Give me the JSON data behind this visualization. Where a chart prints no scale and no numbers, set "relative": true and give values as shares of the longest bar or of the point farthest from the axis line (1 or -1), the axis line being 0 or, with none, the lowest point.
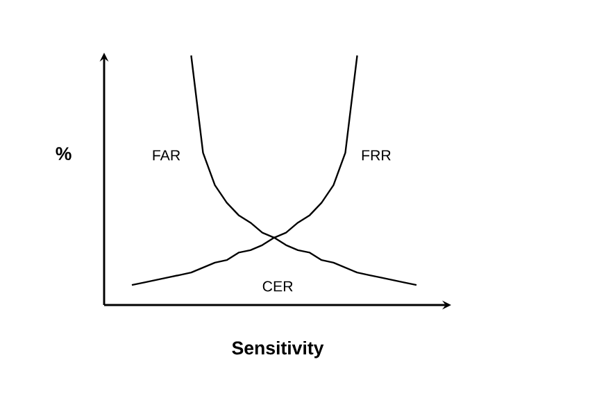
{
  "chart_data": {
    "type": "line",
    "relative": true,
    "xlabel": "Sensitivity",
    "ylabel": "%",
    "categories": [
      null,
      null,
      null,
      null,
      null,
      null,
      null,
      null,
      null,
      null,
      null,
      null,
      null,
      null,
      null,
      null,
      null,
      null,
      null,
      null,
      null,
      null,
      null,
      null,
      null
    ],
    "series": [
      {
        "name": "FAR",
        "color": "#000000",
        "values": [
          null,
          null,
          null,
          null,
          null,
          1,
          0.61,
          0.48,
          0.41,
          0.36,
          0.33,
          0.29,
          0.27,
          0.24,
          0.22,
          0.21,
          0.18,
          0.17,
          0.15,
          0.13,
          0.12,
          0.11,
          0.1,
          0.09,
          0.08
        ]
      },
      {
        "name": "FRR",
        "color": "#000000",
        "values": [
          0.08,
          0.09,
          0.1,
          0.11,
          0.12,
          0.13,
          0.15,
          0.17,
          0.18,
          0.21,
          0.22,
          0.24,
          0.27,
          0.29,
          0.33,
          0.36,
          0.41,
          0.48,
          0.61,
          1,
          null,
          null,
          null,
          null,
          null
        ]
      }
    ],
    "annotations": [
      "CER"
    ]
  }
}
